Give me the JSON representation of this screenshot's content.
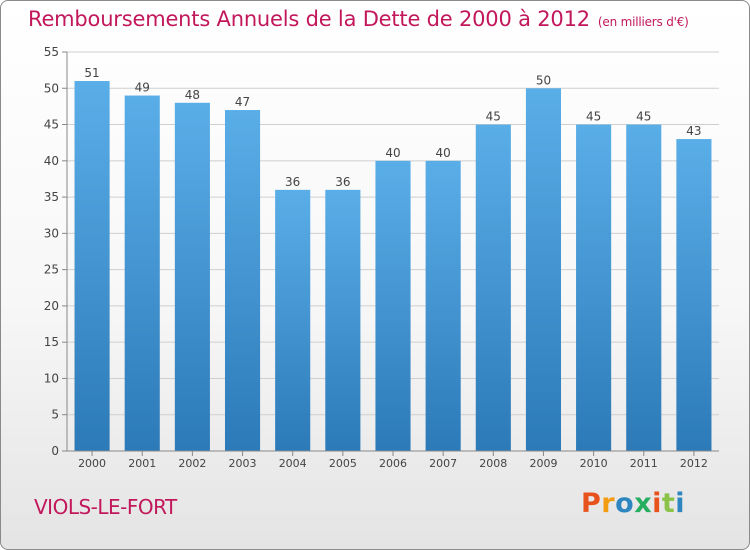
{
  "header": {
    "title": "Remboursements Annuels de la Dette de 2000 à 2012",
    "subtitle": "(en milliers d'€)"
  },
  "footer": {
    "commune": "VIOLS-LE-FORT",
    "logo_text": "Proxiti",
    "logo_colors": [
      "#e8521c",
      "#f39c12",
      "#2e86c1",
      "#27ae60",
      "#e8521c",
      "#8bc34a",
      "#2e86c1"
    ]
  },
  "chart_data": {
    "type": "bar",
    "title": "Remboursements Annuels de la Dette de 2000 à 2012",
    "subtitle": "(en milliers d'€)",
    "xlabel": "",
    "ylabel": "",
    "categories": [
      "2000",
      "2001",
      "2002",
      "2003",
      "2004",
      "2005",
      "2006",
      "2007",
      "2008",
      "2009",
      "2010",
      "2011",
      "2012"
    ],
    "values": [
      51,
      49,
      48,
      47,
      36,
      36,
      40,
      40,
      45,
      50,
      45,
      45,
      43
    ],
    "ylim": [
      0,
      55
    ],
    "yticks": [
      0,
      5,
      10,
      15,
      20,
      25,
      30,
      35,
      40,
      45,
      50,
      55
    ],
    "grid": true,
    "bar_color_top": "#5aaee8",
    "bar_color_bottom": "#2c7ab8",
    "data_labels": true
  }
}
